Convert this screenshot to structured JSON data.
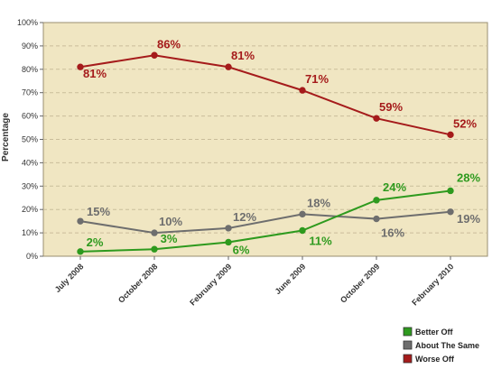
{
  "chart_data": {
    "type": "line",
    "ylabel": "Percentage",
    "xlabel": "",
    "categories": [
      "July 2008",
      "October 2008",
      "February 2009",
      "June 2009",
      "October 2009",
      "February 2010"
    ],
    "y_ticks": [
      "0%",
      "10%",
      "20%",
      "30%",
      "40%",
      "50%",
      "60%",
      "70%",
      "80%",
      "90%",
      "100%"
    ],
    "ylim": [
      0,
      100
    ],
    "grid": true,
    "legend_position": "bottom-right",
    "series": [
      {
        "name": "Worse Off",
        "color": "#a51b1b",
        "values": [
          81,
          86,
          81,
          71,
          59,
          52
        ],
        "labels": [
          "81%",
          "86%",
          "81%",
          "71%",
          "59%",
          "52%"
        ]
      },
      {
        "name": "About The Same",
        "color": "#6e6e6e",
        "values": [
          15,
          10,
          12,
          18,
          16,
          19
        ],
        "labels": [
          "15%",
          "10%",
          "12%",
          "18%",
          "16%",
          "19%"
        ]
      },
      {
        "name": "Better Off",
        "color": "#2e9a1e",
        "values": [
          2,
          3,
          6,
          11,
          24,
          28
        ],
        "labels": [
          "2%",
          "3%",
          "6%",
          "11%",
          "24%",
          "28%"
        ]
      }
    ],
    "legend": [
      "Better Off",
      "About The Same",
      "Worse Off"
    ],
    "plot_background": "#f0e6c2",
    "grid_color": "#c9bd9a"
  }
}
